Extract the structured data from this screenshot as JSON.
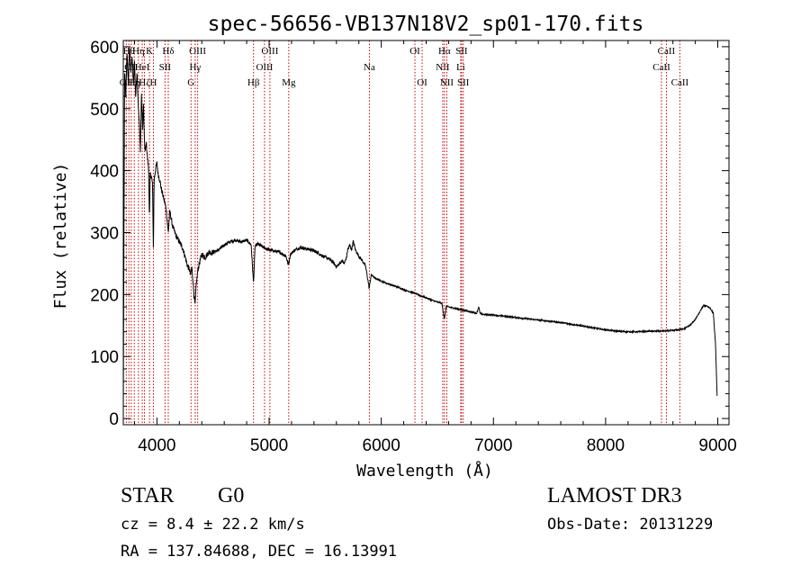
{
  "chart_data": {
    "type": "line",
    "title": "spec-56656-VB137N18V2_sp01-170.fits",
    "xlabel": "Wavelength (Å)",
    "ylabel": "Flux (relative)",
    "xlim": [
      3700,
      9100
    ],
    "ylim": [
      -10,
      610
    ],
    "xticks": [
      4000,
      5000,
      6000,
      7000,
      8000,
      9000
    ],
    "yticks": [
      0,
      100,
      200,
      300,
      400,
      500,
      600
    ],
    "grid": false,
    "line_color": "#000000",
    "marker_color": "#cc0000",
    "spectrum_control_points": [
      [
        3700,
        0
      ],
      [
        3705,
        250
      ],
      [
        3712,
        560
      ],
      [
        3722,
        520
      ],
      [
        3733,
        590
      ],
      [
        3745,
        540
      ],
      [
        3755,
        600
      ],
      [
        3768,
        560
      ],
      [
        3778,
        585
      ],
      [
        3790,
        540
      ],
      [
        3800,
        575
      ],
      [
        3810,
        520
      ],
      [
        3822,
        560
      ],
      [
        3835,
        500
      ],
      [
        3845,
        470
      ],
      [
        3852,
        430
      ],
      [
        3862,
        520
      ],
      [
        3872,
        470
      ],
      [
        3880,
        505
      ],
      [
        3888,
        450
      ],
      [
        3895,
        430
      ],
      [
        3905,
        445
      ],
      [
        3915,
        420
      ],
      [
        3925,
        405
      ],
      [
        3933,
        320
      ],
      [
        3940,
        395
      ],
      [
        3950,
        390
      ],
      [
        3960,
        380
      ],
      [
        3968,
        275
      ],
      [
        3975,
        385
      ],
      [
        3990,
        405
      ],
      [
        4000,
        412
      ],
      [
        4010,
        395
      ],
      [
        4025,
        385
      ],
      [
        4040,
        370
      ],
      [
        4060,
        355
      ],
      [
        4080,
        340
      ],
      [
        4101,
        300
      ],
      [
        4115,
        335
      ],
      [
        4140,
        310
      ],
      [
        4170,
        295
      ],
      [
        4200,
        285
      ],
      [
        4230,
        275
      ],
      [
        4250,
        262
      ],
      [
        4270,
        248
      ],
      [
        4290,
        240
      ],
      [
        4300,
        230
      ],
      [
        4310,
        245
      ],
      [
        4320,
        225
      ],
      [
        4330,
        200
      ],
      [
        4340,
        182
      ],
      [
        4350,
        215
      ],
      [
        4365,
        240
      ],
      [
        4385,
        255
      ],
      [
        4400,
        265
      ],
      [
        4430,
        260
      ],
      [
        4460,
        268
      ],
      [
        4500,
        268
      ],
      [
        4550,
        272
      ],
      [
        4600,
        280
      ],
      [
        4650,
        285
      ],
      [
        4700,
        288
      ],
      [
        4750,
        285
      ],
      [
        4800,
        288
      ],
      [
        4840,
        280
      ],
      [
        4861,
        218
      ],
      [
        4875,
        278
      ],
      [
        4900,
        282
      ],
      [
        4950,
        276
      ],
      [
        5000,
        272
      ],
      [
        5050,
        270
      ],
      [
        5100,
        268
      ],
      [
        5150,
        262
      ],
      [
        5172,
        248
      ],
      [
        5190,
        265
      ],
      [
        5230,
        272
      ],
      [
        5280,
        276
      ],
      [
        5330,
        274
      ],
      [
        5380,
        272
      ],
      [
        5430,
        268
      ],
      [
        5480,
        262
      ],
      [
        5530,
        258
      ],
      [
        5570,
        252
      ],
      [
        5600,
        245
      ],
      [
        5630,
        250
      ],
      [
        5650,
        255
      ],
      [
        5670,
        250
      ],
      [
        5690,
        260
      ],
      [
        5700,
        272
      ],
      [
        5720,
        280
      ],
      [
        5735,
        272
      ],
      [
        5750,
        286
      ],
      [
        5770,
        272
      ],
      [
        5800,
        262
      ],
      [
        5830,
        255
      ],
      [
        5860,
        246
      ],
      [
        5893,
        210
      ],
      [
        5910,
        232
      ],
      [
        5950,
        226
      ],
      [
        6000,
        222
      ],
      [
        6050,
        218
      ],
      [
        6100,
        215
      ],
      [
        6150,
        212
      ],
      [
        6200,
        208
      ],
      [
        6250,
        205
      ],
      [
        6300,
        202
      ],
      [
        6350,
        198
      ],
      [
        6400,
        195
      ],
      [
        6450,
        191
      ],
      [
        6500,
        188
      ],
      [
        6540,
        186
      ],
      [
        6563,
        160
      ],
      [
        6580,
        182
      ],
      [
        6600,
        180
      ],
      [
        6650,
        178
      ],
      [
        6700,
        176
      ],
      [
        6750,
        174
      ],
      [
        6800,
        172
      ],
      [
        6850,
        170
      ],
      [
        6870,
        180
      ],
      [
        6880,
        170
      ],
      [
        6900,
        168
      ],
      [
        7000,
        167
      ],
      [
        7100,
        165
      ],
      [
        7200,
        163
      ],
      [
        7300,
        161
      ],
      [
        7400,
        159
      ],
      [
        7500,
        157
      ],
      [
        7600,
        155
      ],
      [
        7700,
        152
      ],
      [
        7800,
        149
      ],
      [
        7900,
        146
      ],
      [
        8000,
        143
      ],
      [
        8100,
        141
      ],
      [
        8200,
        140
      ],
      [
        8300,
        140
      ],
      [
        8400,
        141
      ],
      [
        8500,
        141
      ],
      [
        8600,
        142
      ],
      [
        8700,
        145
      ],
      [
        8750,
        150
      ],
      [
        8800,
        160
      ],
      [
        8840,
        172
      ],
      [
        8870,
        182
      ],
      [
        8900,
        182
      ],
      [
        8930,
        178
      ],
      [
        8960,
        170
      ],
      [
        8980,
        120
      ],
      [
        8995,
        30
      ]
    ],
    "line_markers": [
      {
        "wavelength": 3727,
        "label": "OII",
        "row": 2
      },
      {
        "wavelength": 3750,
        "label": "Hθ",
        "row": 0
      },
      {
        "wavelength": 3771,
        "label": "OII",
        "row": 1
      },
      {
        "wavelength": 3798,
        "label": "Hη",
        "row": 2
      },
      {
        "wavelength": 3835,
        "label": "Hη",
        "row": 0
      },
      {
        "wavelength": 3869,
        "label": "HeI",
        "row": 1
      },
      {
        "wavelength": 3889,
        "label": "Hζ",
        "row": 2
      },
      {
        "wavelength": 3934,
        "label": "K",
        "row": 0
      },
      {
        "wavelength": 3969,
        "label": "H",
        "row": 2
      },
      {
        "wavelength": 4072,
        "label": "SII",
        "row": 1
      },
      {
        "wavelength": 4101,
        "label": "Hδ",
        "row": 0
      },
      {
        "wavelength": 4304,
        "label": "G",
        "row": 2
      },
      {
        "wavelength": 4341,
        "label": "Hγ",
        "row": 1
      },
      {
        "wavelength": 4363,
        "label": "OIII",
        "row": 0
      },
      {
        "wavelength": 4861,
        "label": "Hβ",
        "row": 2
      },
      {
        "wavelength": 4959,
        "label": "OIII",
        "row": 1
      },
      {
        "wavelength": 5007,
        "label": "OIII",
        "row": 0
      },
      {
        "wavelength": 5175,
        "label": "Mg",
        "row": 2
      },
      {
        "wavelength": 5894,
        "label": "Na",
        "row": 1
      },
      {
        "wavelength": 6300,
        "label": "OI",
        "row": 0
      },
      {
        "wavelength": 6364,
        "label": "OI",
        "row": 2
      },
      {
        "wavelength": 6548,
        "label": "NII",
        "row": 1
      },
      {
        "wavelength": 6563,
        "label": "Hα",
        "row": 0
      },
      {
        "wavelength": 6584,
        "label": "NII",
        "row": 2
      },
      {
        "wavelength": 6708,
        "label": "Li",
        "row": 1
      },
      {
        "wavelength": 6716,
        "label": "SII",
        "row": 0
      },
      {
        "wavelength": 6731,
        "label": "SII",
        "row": 2
      },
      {
        "wavelength": 8498,
        "label": "CaII",
        "row": 1
      },
      {
        "wavelength": 8542,
        "label": "CaII",
        "row": 0
      },
      {
        "wavelength": 8662,
        "label": "CaII",
        "row": 2
      }
    ]
  },
  "info": {
    "class_label": "STAR",
    "subclass_label": "G0",
    "survey": "LAMOST DR3",
    "redshift": "cz = 8.4 ± 22.2 km/s",
    "obs_date": "Obs-Date: 20131229",
    "coords": "RA = 137.84688, DEC =  16.13991"
  }
}
